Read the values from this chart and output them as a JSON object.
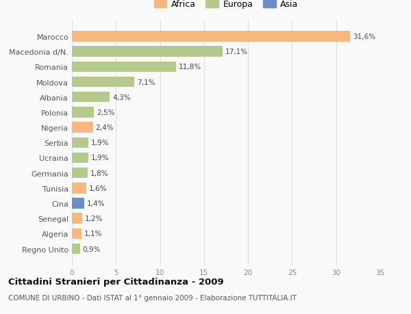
{
  "countries": [
    "Marocco",
    "Macedonia d/N.",
    "Romania",
    "Moldova",
    "Albania",
    "Polonia",
    "Nigeria",
    "Serbia",
    "Ucraina",
    "Germania",
    "Tunisia",
    "Cina",
    "Senegal",
    "Algeria",
    "Regno Unito"
  ],
  "values": [
    31.6,
    17.1,
    11.8,
    7.1,
    4.3,
    2.5,
    2.4,
    1.9,
    1.9,
    1.8,
    1.6,
    1.4,
    1.2,
    1.1,
    0.9
  ],
  "labels": [
    "31,6%",
    "17,1%",
    "11,8%",
    "7,1%",
    "4,3%",
    "2,5%",
    "2,4%",
    "1,9%",
    "1,9%",
    "1,8%",
    "1,6%",
    "1,4%",
    "1,2%",
    "1,1%",
    "0,9%"
  ],
  "categories": [
    "Africa",
    "Europa",
    "Asia"
  ],
  "continent": [
    "Africa",
    "Europa",
    "Europa",
    "Europa",
    "Europa",
    "Europa",
    "Africa",
    "Europa",
    "Europa",
    "Europa",
    "Africa",
    "Asia",
    "Africa",
    "Africa",
    "Europa"
  ],
  "colors": {
    "Africa": "#f5b97f",
    "Europa": "#b5c98e",
    "Asia": "#6b8fc4"
  },
  "xlim": [
    0,
    35
  ],
  "xticks": [
    0,
    5,
    10,
    15,
    20,
    25,
    30,
    35
  ],
  "title": "Cittadini Stranieri per Cittadinanza - 2009",
  "subtitle": "COMUNE DI URBINO - Dati ISTAT al 1° gennaio 2009 - Elaborazione TUTTITALIA.IT",
  "background_color": "#f9f9f9",
  "grid_color": "#e0e0e0"
}
